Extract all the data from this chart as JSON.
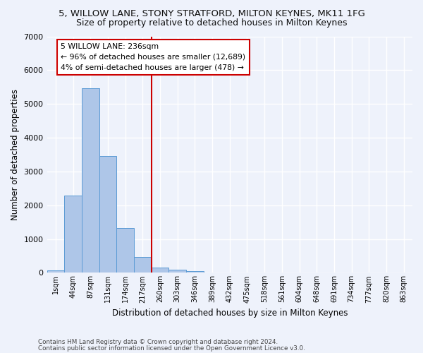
{
  "title": "5, WILLOW LANE, STONY STRATFORD, MILTON KEYNES, MK11 1FG",
  "subtitle": "Size of property relative to detached houses in Milton Keynes",
  "xlabel": "Distribution of detached houses by size in Milton Keynes",
  "ylabel": "Number of detached properties",
  "categories": [
    "1sqm",
    "44sqm",
    "87sqm",
    "131sqm",
    "174sqm",
    "217sqm",
    "260sqm",
    "303sqm",
    "346sqm",
    "389sqm",
    "432sqm",
    "475sqm",
    "518sqm",
    "561sqm",
    "604sqm",
    "648sqm",
    "691sqm",
    "734sqm",
    "777sqm",
    "820sqm",
    "863sqm"
  ],
  "values": [
    80,
    2280,
    5470,
    3450,
    1320,
    470,
    160,
    90,
    45,
    15,
    5,
    3,
    1,
    0,
    0,
    0,
    0,
    0,
    0,
    0,
    0
  ],
  "bar_color": "#aec6e8",
  "bar_edge_color": "#5b9bd5",
  "vline_x": 5.5,
  "vline_color": "#cc0000",
  "annotation_text": "5 WILLOW LANE: 236sqm\n← 96% of detached houses are smaller (12,689)\n4% of semi-detached houses are larger (478) →",
  "annotation_box_color": "#cc0000",
  "annotation_text_color": "#000000",
  "ylim": [
    0,
    7000
  ],
  "yticks": [
    0,
    1000,
    2000,
    3000,
    4000,
    5000,
    6000,
    7000
  ],
  "footer1": "Contains HM Land Registry data © Crown copyright and database right 2024.",
  "footer2": "Contains public sector information licensed under the Open Government Licence v3.0.",
  "background_color": "#eef2fb",
  "grid_color": "#ffffff",
  "title_fontsize": 9.5,
  "subtitle_fontsize": 9
}
